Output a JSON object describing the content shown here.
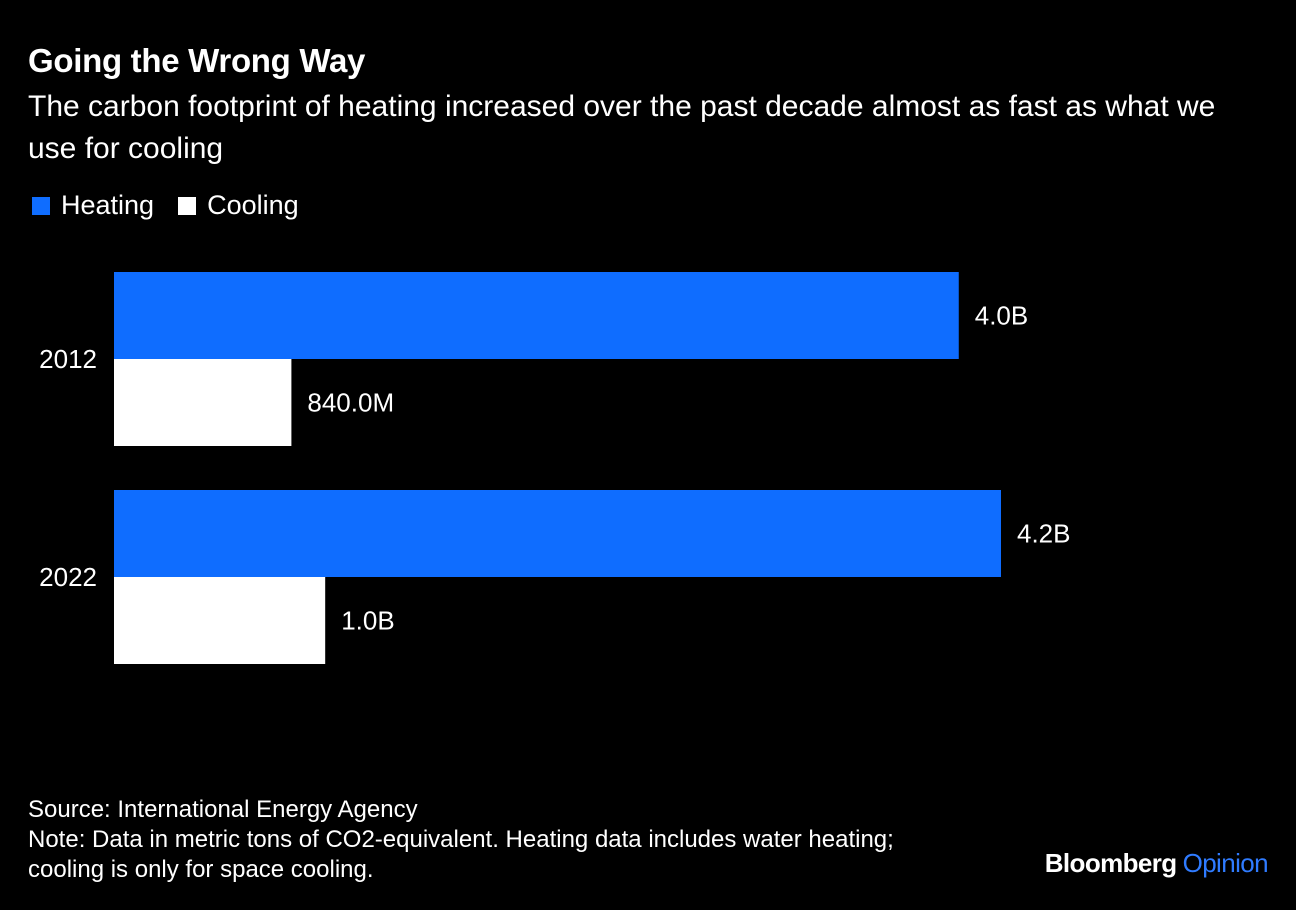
{
  "chart_data": {
    "type": "bar",
    "orientation": "horizontal",
    "title": "Going the Wrong Way",
    "subtitle": "The carbon footprint of heating increased over the past decade almost as fast as what we use for cooling",
    "categories": [
      "2012",
      "2022"
    ],
    "series": [
      {
        "name": "Heating",
        "color": "#0f6dff",
        "values": [
          4000000000,
          4200000000
        ],
        "labels": [
          "4.0B",
          "4.2B"
        ]
      },
      {
        "name": "Cooling",
        "color": "#ffffff",
        "values": [
          840000000,
          1000000000
        ],
        "labels": [
          "840.0M",
          "1.0B"
        ]
      }
    ],
    "xlim": [
      0,
      4200000000
    ],
    "xlabel": "",
    "ylabel": "",
    "grid": false,
    "legend_position": "top-left"
  },
  "source": "Source: International Energy Agency",
  "note_line1": "Note: Data in metric tons of CO2-equivalent. Heating data includes water heating;",
  "note_line2": "cooling is only for space cooling.",
  "brand": {
    "name": "Bloomberg",
    "section": "Opinion",
    "section_color": "#2f7bff"
  }
}
